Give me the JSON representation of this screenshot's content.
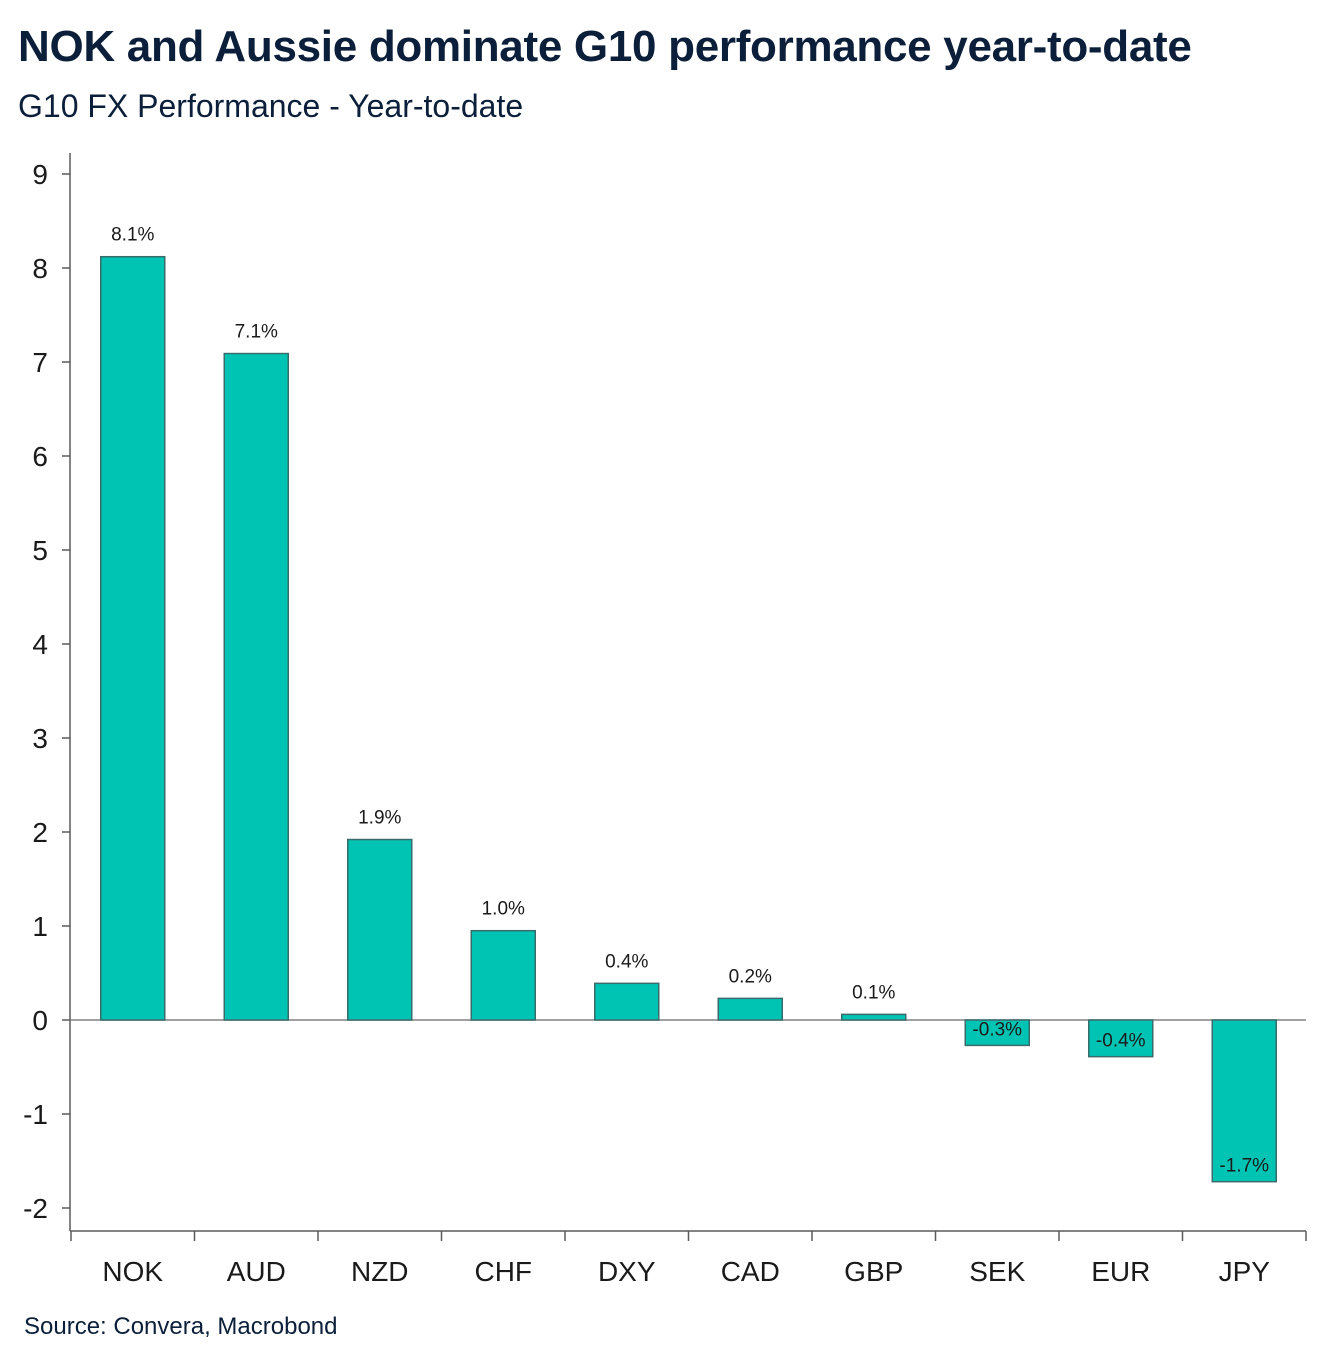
{
  "header": {
    "title": "NOK and Aussie dominate G10 performance year-to-date",
    "subtitle": "G10 FX Performance - Year-to-date"
  },
  "footer": {
    "source": "Source: Convera, Macrobond"
  },
  "colors": {
    "bar_fill": "#00c4b3",
    "bar_stroke": "#3a6b6b",
    "axis": "#5a5a5a",
    "zero_line": "#808080",
    "title": "#0b1f3a"
  },
  "chart_data": {
    "type": "bar",
    "title": "NOK and Aussie dominate G10 performance year-to-date",
    "subtitle": "G10 FX Performance - Year-to-date",
    "xlabel": "",
    "ylabel": "",
    "categories": [
      "NOK",
      "AUD",
      "NZD",
      "CHF",
      "DXY",
      "CAD",
      "GBP",
      "SEK",
      "EUR",
      "JPY"
    ],
    "values": [
      8.12,
      7.09,
      1.92,
      0.95,
      0.39,
      0.23,
      0.06,
      -0.27,
      -0.39,
      -1.72
    ],
    "data_labels": [
      "8.1%",
      "7.1%",
      "1.9%",
      "1.0%",
      "0.4%",
      "0.2%",
      "0.1%",
      "-0.3%",
      "-0.4%",
      "-1.7%"
    ],
    "yticks": [
      9,
      8,
      7,
      6,
      5,
      4,
      3,
      2,
      1,
      0,
      -1,
      -2
    ],
    "ylim": [
      -2.25,
      9.25
    ],
    "grid": false,
    "legend": "none"
  }
}
